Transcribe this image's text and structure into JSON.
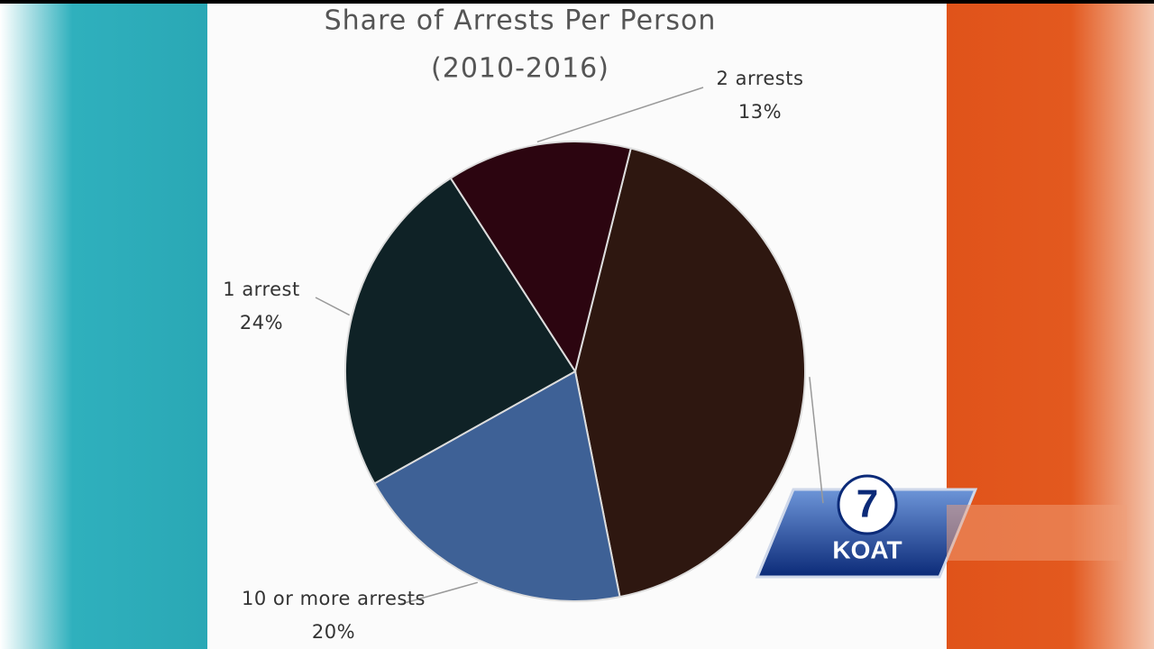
{
  "chart_data": {
    "type": "pie",
    "title": "Share of Arrests Per Person",
    "subtitle": "(2010-2016)",
    "categories": [
      null,
      "10 or more arrests",
      "1 arrest",
      "2 arrests"
    ],
    "values": [
      43,
      20,
      24,
      13
    ],
    "value_labels": [
      null,
      "20%",
      "24%",
      "13%"
    ],
    "colors": [
      "#2e1710",
      "#3e6196",
      "#0f2226",
      "#2c0510"
    ]
  },
  "logo": {
    "channel": "7",
    "name": "KOAT"
  }
}
